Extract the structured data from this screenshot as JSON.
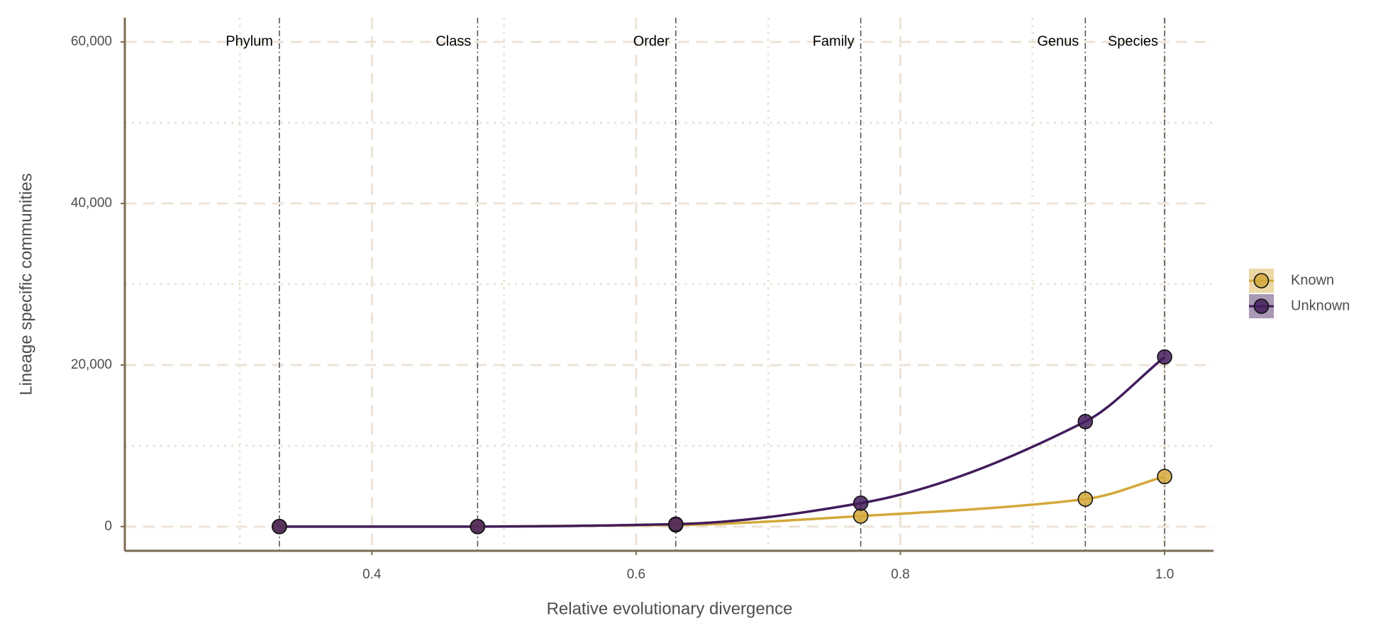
{
  "chart_data": {
    "type": "line",
    "x_label": "Relative evolutionary divergence",
    "y_label": "Lineage specific communities",
    "x": [
      0.33,
      0.48,
      0.63,
      0.77,
      0.94,
      1.0
    ],
    "series": [
      {
        "name": "Known",
        "color": "#d4a83a",
        "values": [
          0,
          0,
          200,
          1300,
          3400,
          6200
        ]
      },
      {
        "name": "Unknown",
        "color": "#421c5c",
        "values": [
          0,
          0,
          300,
          2900,
          13000,
          21000
        ]
      }
    ],
    "ranks": [
      "Phylum",
      "Class",
      "Order",
      "Family",
      "Genus",
      "Species"
    ],
    "xlim": [
      0.213,
      1.037
    ],
    "xticks": [
      {
        "value": 0.4,
        "label": "0.4"
      },
      {
        "value": 0.6,
        "label": "0.6"
      },
      {
        "value": 0.8,
        "label": "0.8"
      },
      {
        "value": 1.0,
        "label": "1.0"
      }
    ],
    "xminor_grid": [
      0.3,
      0.5,
      0.7,
      0.9
    ],
    "ylim": [
      -3000,
      63000
    ],
    "yticks": [
      0,
      {
        "value": 20000,
        "label": "20,000"
      },
      {
        "value": 40000,
        "label": "40,000"
      },
      {
        "value": 60000,
        "label": "60,000"
      }
    ],
    "yminor_grid": [
      10000,
      30000,
      50000
    ],
    "grid": true
  }
}
